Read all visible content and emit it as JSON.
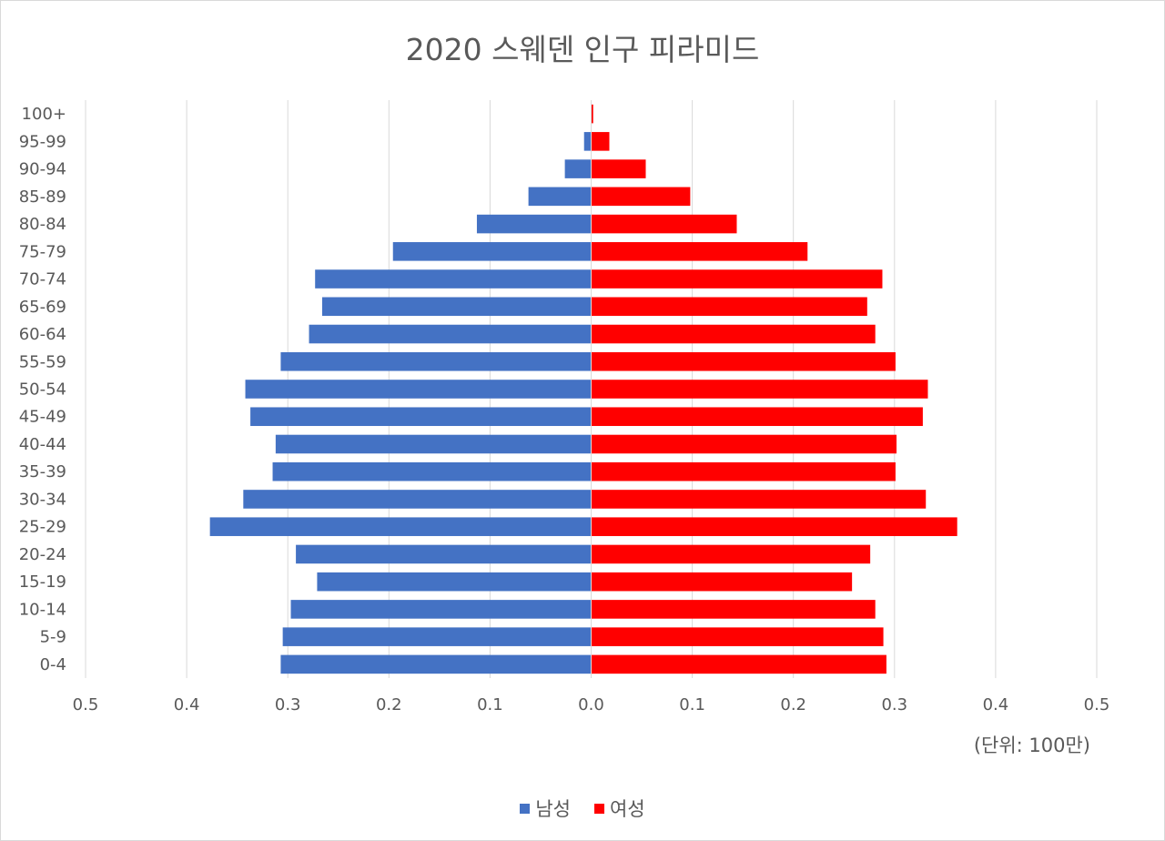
{
  "chart_data": {
    "type": "bar",
    "orientation": "horizontal",
    "title": "2020 스웨덴 인구 피라미드",
    "unit_label": "(단위: 100만)",
    "categories": [
      "0-4",
      "5-9",
      "10-14",
      "15-19",
      "20-24",
      "25-29",
      "30-34",
      "35-39",
      "40-44",
      "45-49",
      "50-54",
      "55-59",
      "60-64",
      "65-69",
      "70-74",
      "75-79",
      "80-84",
      "85-89",
      "90-94",
      "95-99",
      "100+"
    ],
    "series": [
      {
        "name": "남성",
        "color": "#4472c4",
        "values": [
          0.307,
          0.305,
          0.297,
          0.271,
          0.292,
          0.377,
          0.344,
          0.315,
          0.312,
          0.337,
          0.342,
          0.307,
          0.279,
          0.266,
          0.273,
          0.196,
          0.113,
          0.062,
          0.026,
          0.007,
          0.0003
        ]
      },
      {
        "name": "여성",
        "color": "#ff0000",
        "values": [
          0.292,
          0.289,
          0.281,
          0.258,
          0.276,
          0.362,
          0.331,
          0.301,
          0.302,
          0.328,
          0.333,
          0.301,
          0.281,
          0.273,
          0.288,
          0.214,
          0.144,
          0.098,
          0.054,
          0.018,
          0.002
        ]
      }
    ],
    "xlim": [
      -0.5,
      0.5
    ],
    "x_ticks": [
      "0.5",
      "0.4",
      "0.3",
      "0.2",
      "0.1",
      "0.0",
      "0.1",
      "0.2",
      "0.3",
      "0.4",
      "0.5"
    ],
    "grid": true,
    "legend_position": "bottom"
  }
}
